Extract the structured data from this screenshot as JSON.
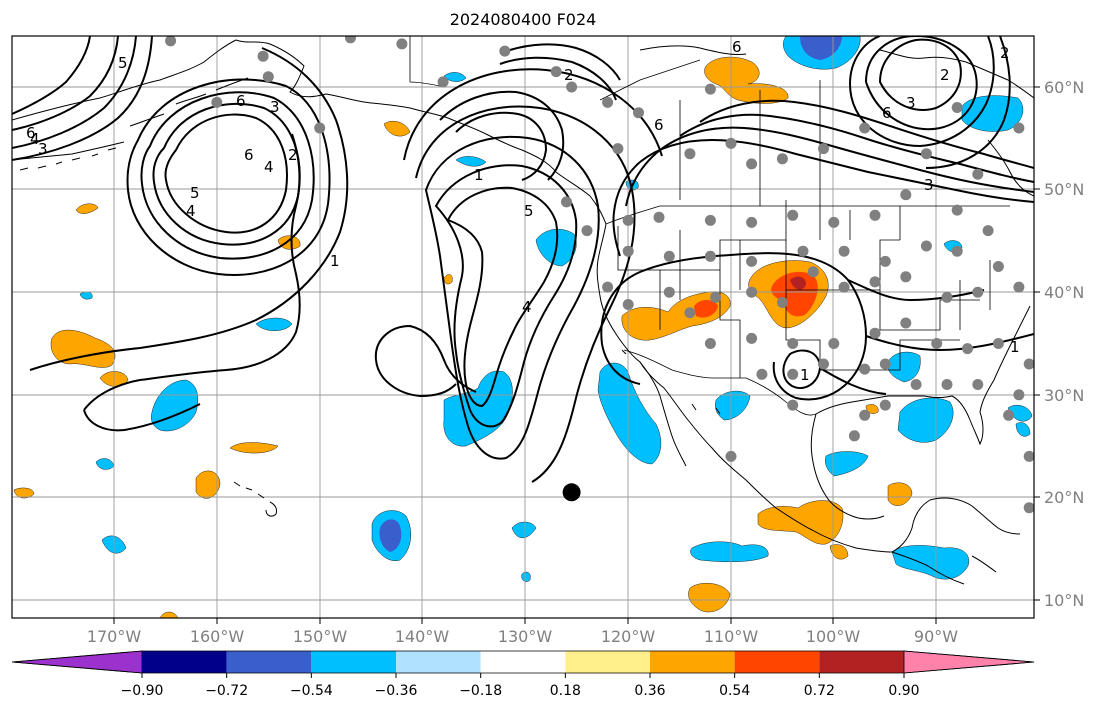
{
  "title": "2024080400 F024",
  "lat_labels": [
    "60°N",
    "50°N",
    "40°N",
    "30°N",
    "20°N",
    "10°N"
  ],
  "lon_labels": [
    "170°W",
    "160°W",
    "150°W",
    "140°W",
    "130°W",
    "120°W",
    "110°W",
    "100°W",
    "90°W"
  ],
  "colorbar": {
    "ticks": [
      "−0.90",
      "−0.72",
      "−0.54",
      "−0.36",
      "−0.18",
      "0.18",
      "0.36",
      "0.54",
      "0.72",
      "0.90"
    ],
    "colors": [
      "#9b32cd",
      "#00008b",
      "#3a5fcd",
      "#00bfff",
      "#b0e2ff",
      "#ffffff",
      "#fff08c",
      "#ffa500",
      "#ff4500",
      "#b22222",
      "#ff82ab"
    ]
  },
  "contour_labels": [
    "5",
    "4",
    "6",
    "4",
    "3",
    "6",
    "2",
    "1",
    "5",
    "4",
    "1",
    "2",
    "6",
    "1",
    "2",
    "6",
    "3",
    "6",
    "4",
    "3",
    "5",
    "6",
    "2",
    "3",
    "1"
  ],
  "chart_data": {
    "type": "contour-map",
    "title": "2024080400 F024",
    "lon_range": [
      -180,
      -80
    ],
    "lat_range": [
      8,
      65
    ],
    "colorbar_levels": [
      -0.9,
      -0.72,
      -0.54,
      -0.36,
      -0.18,
      0.18,
      0.36,
      0.54,
      0.72,
      0.9
    ],
    "contour_values": [
      1,
      2,
      3,
      4,
      5,
      6
    ],
    "marker": {
      "lon": -125.5,
      "lat": 20.5
    },
    "stations": [
      [
        -164.5,
        64.5
      ],
      [
        -155.5,
        63
      ],
      [
        -147,
        64.8
      ],
      [
        -142,
        64.2
      ],
      [
        -155,
        61
      ],
      [
        -160,
        58.5
      ],
      [
        -150,
        56
      ],
      [
        -138,
        60.5
      ],
      [
        -132,
        63.5
      ],
      [
        -127,
        61.5
      ],
      [
        -122,
        58.5
      ],
      [
        -112,
        59.8
      ],
      [
        -119,
        57.5
      ],
      [
        -121,
        54
      ],
      [
        -114,
        53.5
      ],
      [
        -110,
        54.5
      ],
      [
        -108,
        52.5
      ],
      [
        -105,
        53
      ],
      [
        -101,
        54
      ],
      [
        -97,
        56
      ],
      [
        -91,
        53.5
      ],
      [
        -86,
        51.5
      ],
      [
        -82,
        56
      ],
      [
        -88,
        58
      ],
      [
        -126,
        48.8
      ],
      [
        -124,
        46
      ],
      [
        -120,
        47
      ],
      [
        -117,
        47.3
      ],
      [
        -112,
        47
      ],
      [
        -108,
        46.8
      ],
      [
        -104,
        47.5
      ],
      [
        -100,
        46.8
      ],
      [
        -96,
        47.5
      ],
      [
        -93,
        49.5
      ],
      [
        -88,
        48
      ],
      [
        -85,
        46
      ],
      [
        -80,
        45.7
      ],
      [
        -84,
        42.5
      ],
      [
        -88,
        44
      ],
      [
        -91,
        44.5
      ],
      [
        -95,
        43
      ],
      [
        -99,
        44
      ],
      [
        -103,
        44
      ],
      [
        -108,
        43
      ],
      [
        -112,
        43.5
      ],
      [
        -116,
        43.5
      ],
      [
        -120,
        44
      ],
      [
        -122,
        40.5
      ],
      [
        -120,
        38.8
      ],
      [
        -116,
        40
      ],
      [
        -114,
        38
      ],
      [
        -111.5,
        39.5
      ],
      [
        -108,
        40
      ],
      [
        -105,
        39
      ],
      [
        -102,
        42
      ],
      [
        -99,
        40.5
      ],
      [
        -96,
        41
      ],
      [
        -93,
        41.5
      ],
      [
        -89,
        39.5
      ],
      [
        -86,
        40
      ],
      [
        -82,
        40.5
      ],
      [
        -112,
        35
      ],
      [
        -108,
        35.5
      ],
      [
        -104,
        35
      ],
      [
        -100,
        35
      ],
      [
        -96,
        36
      ],
      [
        -93,
        37
      ],
      [
        -90,
        35
      ],
      [
        -87,
        34.5
      ],
      [
        -84,
        35
      ],
      [
        -81,
        33
      ],
      [
        -107,
        32
      ],
      [
        -104,
        32
      ],
      [
        -101,
        33
      ],
      [
        -97,
        32.5
      ],
      [
        -95,
        33
      ],
      [
        -92,
        31
      ],
      [
        -89,
        31
      ],
      [
        -86,
        31
      ],
      [
        -82,
        30
      ],
      [
        -97,
        28
      ],
      [
        -98,
        26
      ],
      [
        -95,
        29
      ],
      [
        -83,
        28
      ],
      [
        -80,
        25.5
      ],
      [
        -81,
        24
      ],
      [
        -81,
        19
      ],
      [
        -110,
        24
      ],
      [
        -104,
        29
      ],
      [
        -125.5,
        60
      ]
    ]
  }
}
